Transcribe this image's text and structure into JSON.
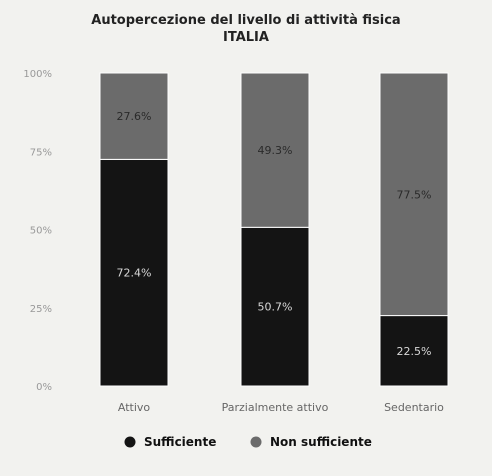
{
  "chart_data": {
    "type": "bar",
    "stacked": true,
    "title": "Autopercezione del livello di attività fisica",
    "subtitle": "ITALIA",
    "categories": [
      "Attivo",
      "Parzialmente attivo",
      "Sedentario"
    ],
    "series": [
      {
        "name": "Sufficiente",
        "values": [
          72.4,
          50.7,
          22.5
        ],
        "labels": [
          "72.4%",
          "50.7%",
          "22.5%"
        ],
        "color": "#141414"
      },
      {
        "name": "Non sufficiente",
        "values": [
          27.6,
          49.3,
          77.5
        ],
        "labels": [
          "27.6%",
          "49.3%",
          "77.5%"
        ],
        "color": "#6b6b6b"
      }
    ],
    "yticks": [
      "0%",
      "25%",
      "50%",
      "75%",
      "100%"
    ],
    "ylim": [
      0,
      100
    ],
    "legend": "bottom",
    "grid": false
  }
}
